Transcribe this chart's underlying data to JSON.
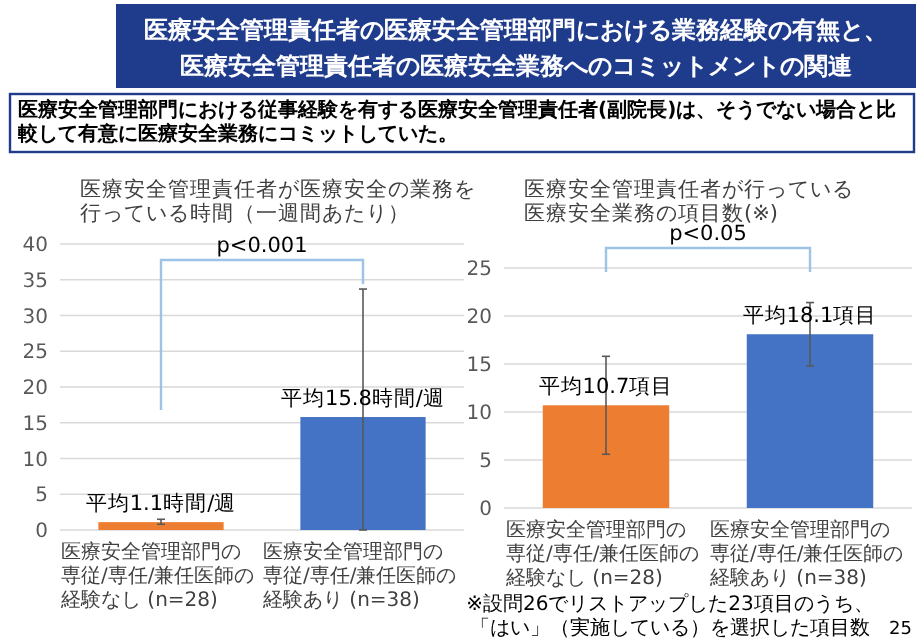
{
  "chart_data": [
    {
      "type": "bar",
      "title": "医療安全管理責任者が医療安全の業務を行っている時間（一週間あたり）",
      "categories": [
        "医療安全管理部門の専従/専任/兼任医師の経験なし (n=28)",
        "医療安全管理部門の専従/専任/兼任医師の経験あり (n=38)"
      ],
      "values": [
        1.1,
        15.8
      ],
      "colors": [
        "#ed7d31",
        "#4472c4"
      ],
      "errors": [
        [
          0.8,
          1.5
        ],
        [
          0,
          33.7
        ]
      ],
      "value_labels": [
        "平均1.1時間/週",
        "平均15.8時間/週"
      ],
      "ylim": [
        0,
        40
      ],
      "yticks": [
        0,
        5,
        10,
        15,
        20,
        25,
        30,
        35,
        40
      ],
      "grid": "y",
      "annotations": [
        "医療安全管理責任者の医療安全管理部門における業務経験の有無と、医療安全管理責任者の医療安全業務へのコミットメントの関連",
        "医療安全管理部門における従事経験を有する医療安全管理責任者(副院長)は、そうでない場合と比較して有意に医療安全業務にコミットしていた。",
        "p<0.001"
      ]
    },
    {
      "type": "bar",
      "title": "医療安全管理責任者が行っている医療安全業務の項目数(※)",
      "categories": [
        "医療安全管理部門の専従/専任/兼任医師の経験なし (n=28)",
        "医療安全管理部門の専従/専任/兼任医師の経験あり (n=38)"
      ],
      "values": [
        10.7,
        18.1
      ],
      "colors": [
        "#ed7d31",
        "#4472c4"
      ],
      "errors": [
        [
          5.6,
          15.8
        ],
        [
          14.8,
          21.4
        ]
      ],
      "value_labels": [
        "平均10.7項目",
        "平均18.1項目"
      ],
      "ylim": [
        0,
        25
      ],
      "yticks": [
        0,
        5,
        10,
        15,
        20,
        25
      ],
      "grid": "y",
      "annotations": [
        "p<0.05",
        "※設問26でリストアップした23項目のうち、「はい」（実施している）を選択した項目数",
        "25"
      ]
    }
  ]
}
